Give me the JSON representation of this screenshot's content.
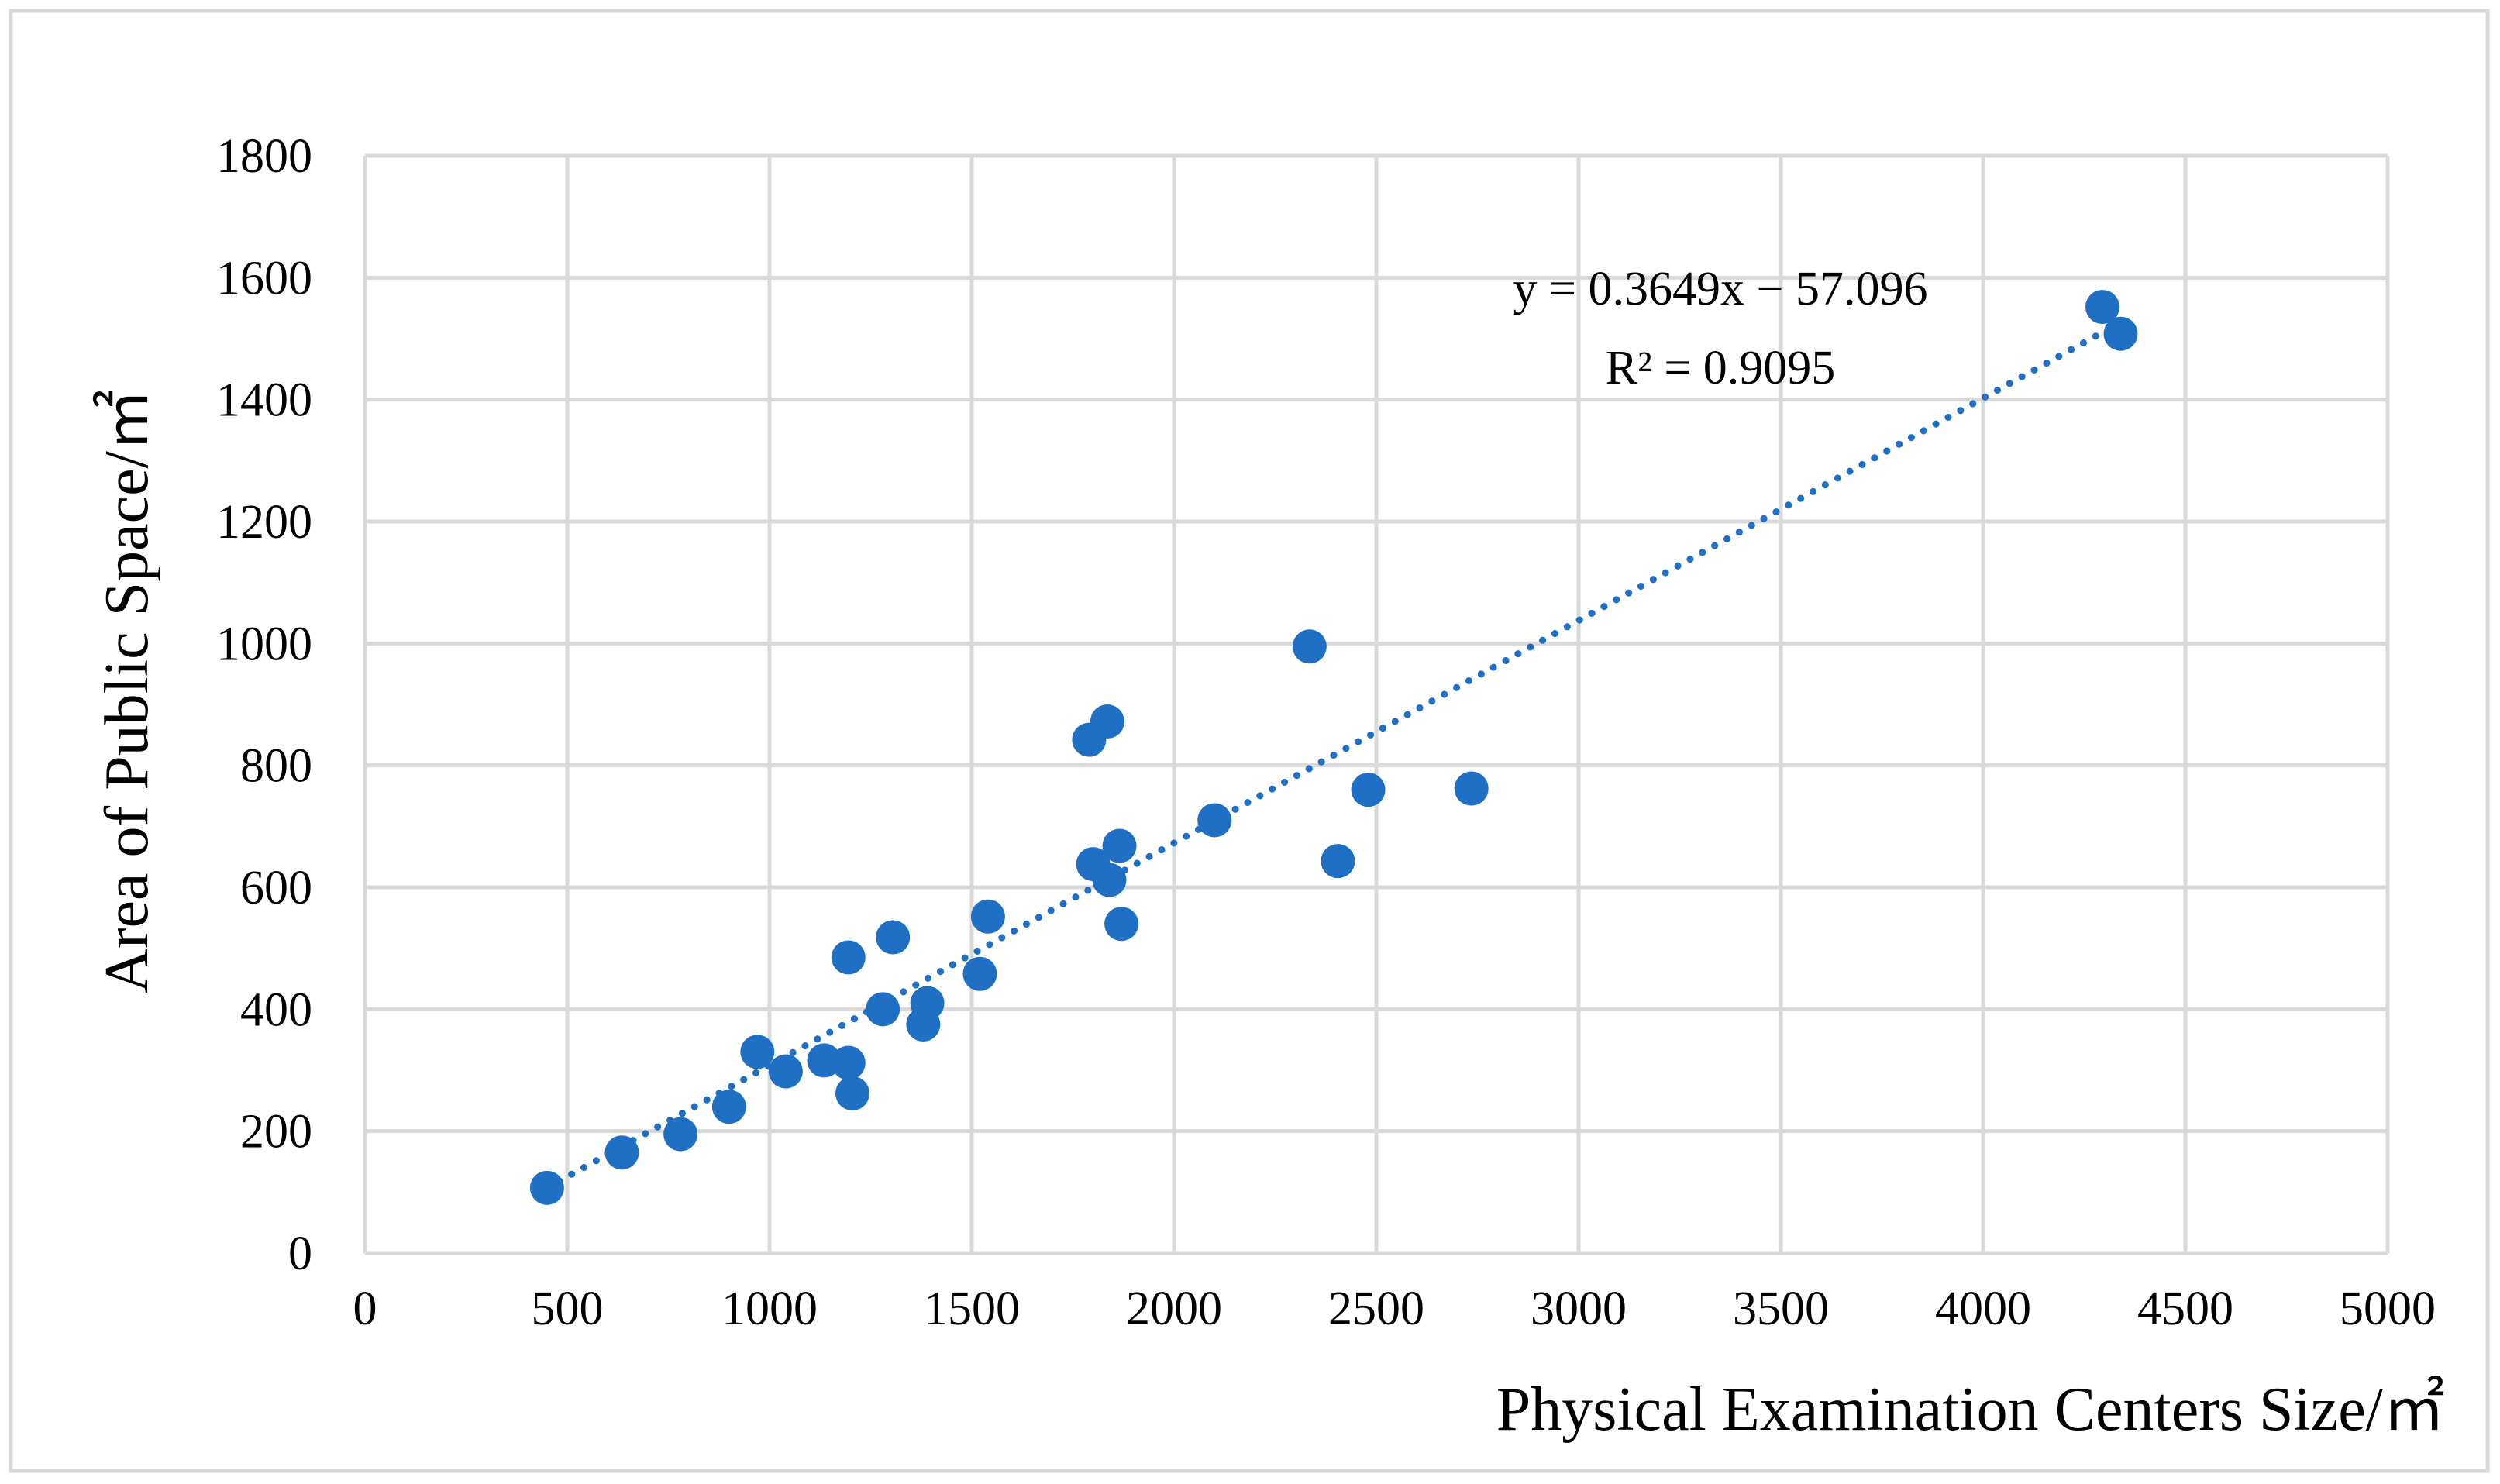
{
  "chart_data": {
    "type": "scatter",
    "title": "",
    "xlabel": "Physical Examination Centers Size/㎡",
    "ylabel": "Area of Public Space/㎡",
    "xlim": [
      0,
      5000
    ],
    "ylim": [
      0,
      1800
    ],
    "xticks": [
      0,
      500,
      1000,
      1500,
      2000,
      2500,
      3000,
      3500,
      4000,
      4500,
      5000
    ],
    "yticks": [
      0,
      200,
      400,
      600,
      800,
      1000,
      1200,
      1400,
      1600,
      1800
    ],
    "grid": true,
    "color": "#1f6fc5",
    "series": [
      {
        "name": "Physical examination centers",
        "points": [
          [
            450,
            107
          ],
          [
            635,
            165
          ],
          [
            780,
            195
          ],
          [
            900,
            240
          ],
          [
            970,
            330
          ],
          [
            1040,
            298
          ],
          [
            1135,
            316
          ],
          [
            1195,
            312
          ],
          [
            1205,
            262
          ],
          [
            1195,
            485
          ],
          [
            1280,
            400
          ],
          [
            1305,
            518
          ],
          [
            1380,
            375
          ],
          [
            1390,
            410
          ],
          [
            1520,
            458
          ],
          [
            1540,
            552
          ],
          [
            1790,
            842
          ],
          [
            1800,
            638
          ],
          [
            1835,
            872
          ],
          [
            1840,
            612
          ],
          [
            1865,
            668
          ],
          [
            1870,
            540
          ],
          [
            2100,
            710
          ],
          [
            2335,
            995
          ],
          [
            2405,
            643
          ],
          [
            2480,
            760
          ],
          [
            2735,
            762
          ],
          [
            4295,
            1552
          ],
          [
            4340,
            1508
          ]
        ]
      }
    ],
    "trendline": {
      "type": "linear",
      "slope": 0.3649,
      "intercept": -57.096,
      "x_range": [
        450,
        4340
      ],
      "style": "dotted"
    },
    "annotations": {
      "equation": "y = 0.3649x − 57.096",
      "r_squared": "R² = 0.9095"
    }
  }
}
